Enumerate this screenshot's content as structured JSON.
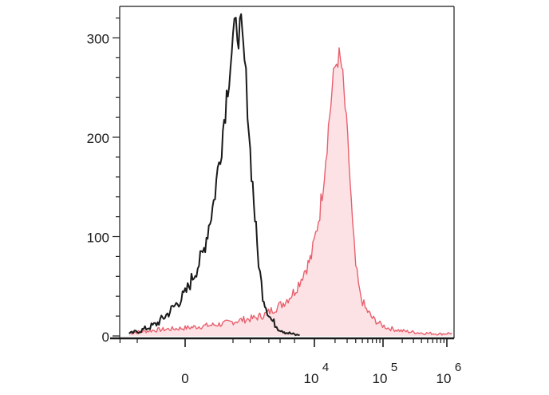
{
  "chart_data": {
    "type": "area",
    "title": "",
    "xlabel": "",
    "ylabel": "",
    "x_scale": "biexponential",
    "ylim": [
      0,
      320
    ],
    "grid": false,
    "legend": "none",
    "y_ticks": [
      {
        "value": 0,
        "label": "0"
      },
      {
        "value": 100,
        "label": "100"
      },
      {
        "value": 200,
        "label": "200"
      },
      {
        "value": 300,
        "label": "300"
      }
    ],
    "x_ticks": [
      {
        "value": 0,
        "label": "0",
        "exp": ""
      },
      {
        "value": 10000,
        "label": "10",
        "exp": "4"
      },
      {
        "value": 100000,
        "label": "10",
        "exp": "5"
      },
      {
        "value": 1000000,
        "label": "10",
        "exp": "6"
      }
    ],
    "series": [
      {
        "color": "#1a1a1a",
        "fill": "none",
        "x": [
          -700,
          -400,
          -200,
          -100,
          0,
          100,
          200,
          300,
          400,
          500,
          600,
          700,
          800,
          900,
          1000,
          1150,
          1300,
          1450,
          1600,
          1800,
          2000,
          2200,
          2500,
          2800,
          3200,
          3600,
          4000,
          4600,
          5200,
          6000
        ],
        "y": [
          2,
          6,
          12,
          22,
          42,
          82,
          135,
          195,
          255,
          298,
          310,
          305,
          275,
          235,
          185,
          135,
          90,
          62,
          42,
          30,
          22,
          16,
          12,
          8,
          6,
          4,
          3,
          2,
          1,
          1
        ]
      },
      {
        "color": "#e8606e",
        "fill": "#fde2e5",
        "x": [
          -700,
          -200,
          0,
          300,
          700,
          1200,
          1800,
          2500,
          3200,
          4000,
          5000,
          6000,
          7000,
          8000,
          9000,
          10000,
          12000,
          14000,
          16000,
          18000,
          20000,
          22000,
          25000,
          28000,
          32000,
          36000,
          40000,
          46000,
          55000,
          70000,
          90000,
          120000,
          200000,
          400000,
          800000,
          1200000
        ],
        "y": [
          3,
          6,
          8,
          12,
          16,
          18,
          22,
          28,
          32,
          38,
          45,
          55,
          65,
          72,
          80,
          95,
          125,
          165,
          210,
          245,
          270,
          282,
          270,
          230,
          175,
          110,
          70,
          42,
          28,
          18,
          12,
          8,
          5,
          3,
          2,
          3
        ]
      }
    ]
  }
}
